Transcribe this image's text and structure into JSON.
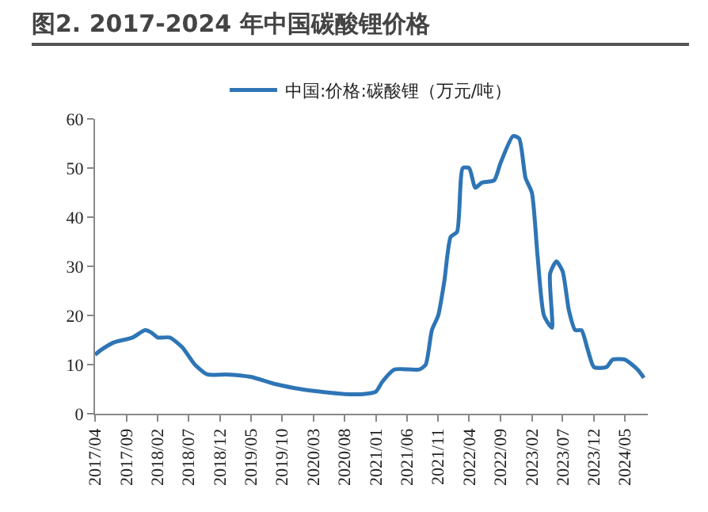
{
  "chart_data": {
    "type": "line",
    "title": "图2. 2017-2024 年中国碳酸锂价格",
    "legend": "top",
    "x": [
      "2017-04",
      "2017-05",
      "2017-07",
      "2017-10",
      "2017-12",
      "2018-01",
      "2018-02",
      "2018-04",
      "2018-06",
      "2018-08",
      "2018-10",
      "2019-01",
      "2019-05",
      "2019-09",
      "2020-01",
      "2020-04",
      "2020-08",
      "2020-11",
      "2021-01",
      "2021-02",
      "2021-04",
      "2021-08",
      "2021-09",
      "2021-10",
      "2021-11",
      "2021-12",
      "2022-01",
      "2022-02",
      "2022-03",
      "2022-04",
      "2022-05",
      "2022-06",
      "2022-08",
      "2022-09",
      "2022-11",
      "2022-12",
      "2023-01",
      "2023-02",
      "2023-03",
      "2023-04",
      "2023-05-10",
      "2023-05",
      "2023-06",
      "2023-07",
      "2023-08",
      "2023-09",
      "2023-10",
      "2023-11",
      "2023-12",
      "2024-02",
      "2024-03",
      "2024-05",
      "2024-07",
      "2024-08"
    ],
    "series": [
      {
        "name": "中国:价格:碳酸锂（万元/吨）",
        "color": "#2e75b6",
        "values": [
          12,
          13,
          14.5,
          15.5,
          17,
          16.5,
          15.5,
          15.5,
          13.5,
          10,
          8,
          8,
          7.5,
          6,
          5,
          4.5,
          4,
          4,
          4.5,
          6.5,
          9,
          9,
          10,
          17,
          20,
          27,
          36,
          37,
          50,
          50,
          46,
          47,
          47.5,
          51,
          56.5,
          56,
          48,
          45,
          32,
          20,
          17.5,
          28.5,
          31,
          29,
          21,
          17,
          17,
          13,
          9.5,
          9.5,
          11,
          11,
          9,
          7.3
        ]
      }
    ],
    "xlim": [
      "2017-04-01",
      "2024-08-20"
    ],
    "xticks": [
      {
        "value": "2017-04",
        "label": "2017/04"
      },
      {
        "value": "2017-09",
        "label": "2017/09"
      },
      {
        "value": "2018-02",
        "label": "2018/02"
      },
      {
        "value": "2018-07",
        "label": "2018/07"
      },
      {
        "value": "2018-12",
        "label": "2018/12"
      },
      {
        "value": "2019-05",
        "label": "2019/05"
      },
      {
        "value": "2019-10",
        "label": "2019/10"
      },
      {
        "value": "2020-03",
        "label": "2020/03"
      },
      {
        "value": "2020-08",
        "label": "2020/08"
      },
      {
        "value": "2021-01",
        "label": "2021/01"
      },
      {
        "value": "2021-06",
        "label": "2021/06"
      },
      {
        "value": "2021-11",
        "label": "2021/11"
      },
      {
        "value": "2022-04",
        "label": "2022/04"
      },
      {
        "value": "2022-09",
        "label": "2022/09"
      },
      {
        "value": "2023-02",
        "label": "2023/02"
      },
      {
        "value": "2023-07",
        "label": "2023/07"
      },
      {
        "value": "2023-12",
        "label": "2023/12"
      },
      {
        "value": "2024-05",
        "label": "2024/05"
      }
    ],
    "ylim": [
      0,
      60
    ],
    "yticks": [
      0,
      10,
      20,
      30,
      40,
      50,
      60
    ],
    "grid": false,
    "marker": "none",
    "line_style": "solid"
  }
}
